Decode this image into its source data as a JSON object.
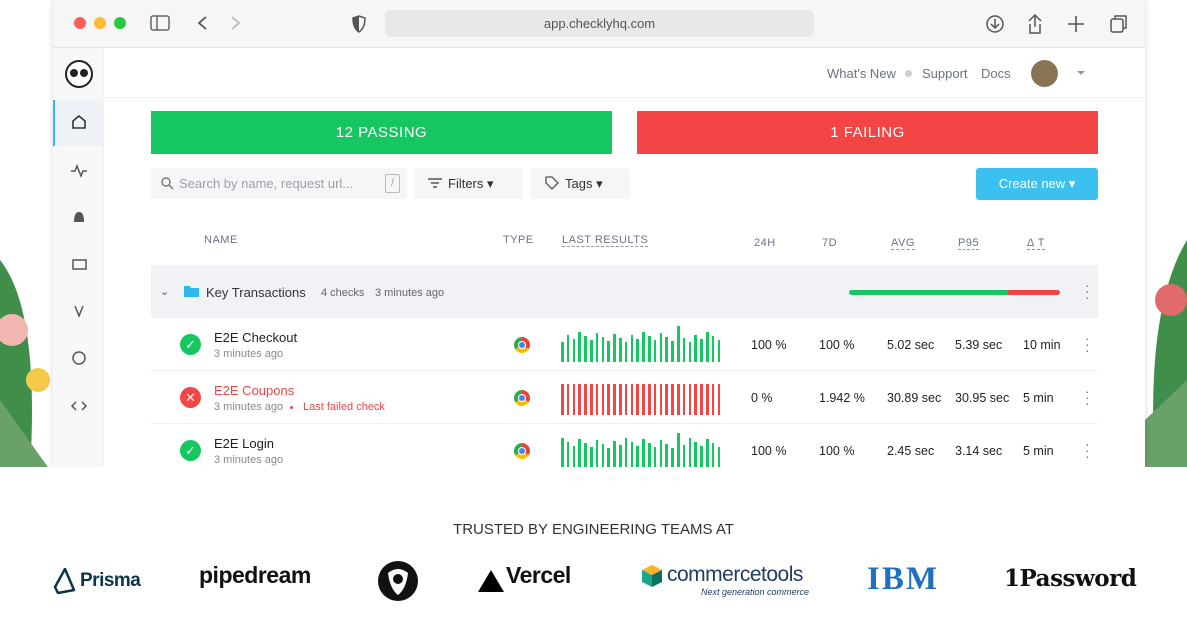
{
  "browser": {
    "url": "app.checklyhq.com"
  },
  "header": {
    "links": [
      "What's New",
      "Support",
      "Docs"
    ]
  },
  "summary": {
    "passing": "12 PASSING",
    "failing": "1 FAILING"
  },
  "toolbar": {
    "search_placeholder": "Search by name, request url...",
    "shortcut": "/",
    "filters": "Filters",
    "tags": "Tags",
    "create": "Create new"
  },
  "table": {
    "columns": [
      "NAME",
      "TYPE",
      "LAST RESULTS",
      "24H",
      "7D",
      "AVG",
      "P95",
      "Δ T"
    ],
    "group": {
      "name": "Key Transactions",
      "count": "4 checks",
      "updated": "3 minutes ago"
    },
    "rows": [
      {
        "name": "E2E Checkout",
        "status": "passing",
        "updated": "3 minutes ago",
        "cells": [
          "100 %",
          "100 %",
          "5.02 sec",
          "5.39 sec",
          "10 min"
        ]
      },
      {
        "name": "E2E Coupons",
        "status": "failing",
        "updated": "3 minutes ago",
        "note": "Last failed check",
        "cells": [
          "0 %",
          "1.942 %",
          "30.89 sec",
          "30.95 sec",
          "5 min"
        ]
      },
      {
        "name": "E2E Login",
        "status": "passing",
        "updated": "3 minutes ago",
        "cells": [
          "100 %",
          "100 %",
          "2.45 sec",
          "3.14 sec",
          "5 min"
        ]
      }
    ]
  },
  "trusted": {
    "title": "TRUSTED BY ENGINEERING TEAMS AT",
    "logos": [
      "Prisma",
      "pipedream",
      "Vercel",
      "commercetools",
      "Next generation commerce",
      "IBM",
      "1Password"
    ]
  }
}
